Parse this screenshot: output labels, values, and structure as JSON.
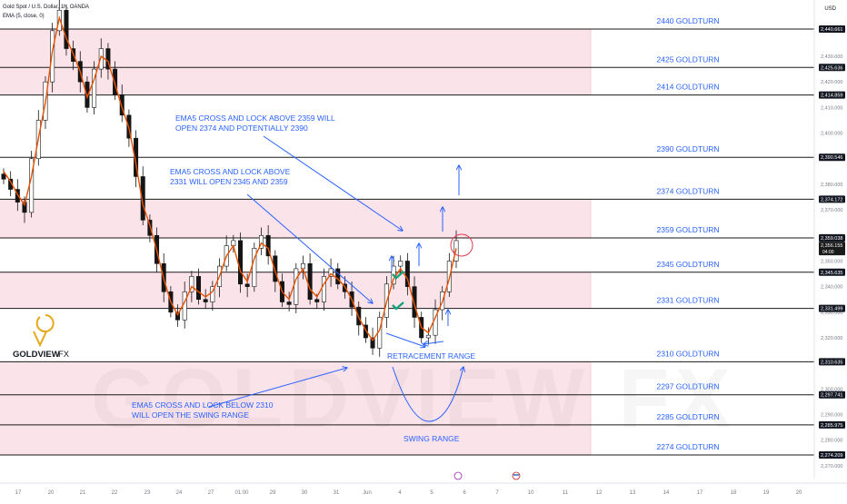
{
  "header": {
    "symbol": "Gold Spot / U.S. Dollar, 1h, OANDA",
    "indicator": "EMA (5, close, 0)",
    "currency": "USD"
  },
  "logo": {
    "brand": "GOLDVIEW",
    "suffix": "FX",
    "watermark": "GOLDVIEW FX"
  },
  "colors": {
    "zone_pink": "#fbe3ea",
    "level_line": "#1a1a1a",
    "level_label": "#2962ff",
    "annotation": "#2962ff",
    "ema": "#e65100",
    "candle": "#151515",
    "circle": "#e53950",
    "check": "#12a37a",
    "logo_gold": "#e6a817"
  },
  "chart_data": {
    "type": "candlestick",
    "title": "Gold Spot / U.S. Dollar, 1h, OANDA",
    "ylim": [
      2265,
      2452
    ],
    "y_ticks": [
      2270,
      2280,
      2290,
      2300,
      2310,
      2320,
      2330,
      2340,
      2350,
      2360,
      2370,
      2380,
      2390,
      2400,
      2410,
      2420,
      2430,
      2440
    ],
    "x_ticks": [
      "17",
      "20",
      "21",
      "22",
      "23",
      "24",
      "27",
      "01:00",
      "29",
      "30",
      "31",
      "Jun",
      "4",
      "5",
      "6",
      "7",
      "10",
      "11",
      "12",
      "13",
      "14",
      "17",
      "18",
      "19",
      "20"
    ],
    "price_labels": [
      {
        "value": 2440.661,
        "label": "2,440.661"
      },
      {
        "value": 2425.636,
        "label": "2,425.636"
      },
      {
        "value": 2414.859,
        "label": "2,414.859"
      },
      {
        "value": 2390.546,
        "label": "2,390.546"
      },
      {
        "value": 2374.172,
        "label": "2,374.172"
      },
      {
        "value": 2359.038,
        "label": "2,359.038"
      },
      {
        "value": 2356.155,
        "label": "2,356.155",
        "sub": "04:00"
      },
      {
        "value": 2345.635,
        "label": "2,345.635"
      },
      {
        "value": 2331.499,
        "label": "2,331.499"
      },
      {
        "value": 2310.635,
        "label": "2,310.635"
      },
      {
        "value": 2297.741,
        "label": "2,297.741"
      },
      {
        "value": 2285.975,
        "label": "2,285.975"
      },
      {
        "value": 2274.209,
        "label": "2,274.209"
      }
    ],
    "levels": [
      {
        "value": 2440.661,
        "label": "2440 GOLDTURN"
      },
      {
        "value": 2425.636,
        "label": "2425 GOLDTURN"
      },
      {
        "value": 2414.859,
        "label": "2414 GOLDTURN"
      },
      {
        "value": 2390.546,
        "label": "2390 GOLDTURN"
      },
      {
        "value": 2374.172,
        "label": "2374 GOLDTURN"
      },
      {
        "value": 2359.038,
        "label": "2359 GOLDTURN"
      },
      {
        "value": 2345.635,
        "label": "2345 GOLDTURN"
      },
      {
        "value": 2331.499,
        "label": "2331 GOLDTURN"
      },
      {
        "value": 2310.635,
        "label": "2310 GOLDTURN"
      },
      {
        "value": 2297.741,
        "label": "2297 GOLDTURN"
      },
      {
        "value": 2285.975,
        "label": "2285 GOLDTURN"
      },
      {
        "value": 2274.209,
        "label": "2274 GOLDTURN"
      }
    ],
    "zones": [
      {
        "from": 2414.859,
        "to": 2440.661
      },
      {
        "from": 2359.038,
        "to": 2374.172
      },
      {
        "from": 2331.499,
        "to": 2345.635
      },
      {
        "from": 2274.209,
        "to": 2310.635
      }
    ],
    "series": [
      {
        "name": "EMA (5, close, 0)",
        "values": [
          2385,
          2381,
          2376,
          2372,
          2383,
          2398,
          2412,
          2432,
          2445,
          2437,
          2431,
          2424,
          2414,
          2421,
          2430,
          2428,
          2419,
          2410,
          2402,
          2388,
          2372,
          2364,
          2354,
          2343,
          2334,
          2329,
          2334,
          2340,
          2338,
          2336,
          2338,
          2344,
          2352,
          2356,
          2346,
          2342,
          2351,
          2357,
          2355,
          2346,
          2338,
          2335,
          2343,
          2347,
          2339,
          2336,
          2341,
          2345,
          2343,
          2340,
          2335,
          2328,
          2323,
          2319,
          2323,
          2334,
          2343,
          2347,
          2343,
          2333,
          2324,
          2322,
          2328,
          2334,
          2343,
          2355
        ]
      }
    ],
    "close": [
      2382,
      2378,
      2373,
      2369,
      2390,
      2405,
      2420,
      2440,
      2448,
      2433,
      2428,
      2420,
      2410,
      2425,
      2433,
      2425,
      2415,
      2407,
      2398,
      2383,
      2366,
      2360,
      2349,
      2338,
      2330,
      2327,
      2338,
      2344,
      2335,
      2334,
      2340,
      2348,
      2356,
      2358,
      2341,
      2340,
      2355,
      2360,
      2352,
      2342,
      2334,
      2333,
      2347,
      2349,
      2335,
      2334,
      2344,
      2347,
      2341,
      2338,
      2332,
      2325,
      2320,
      2316,
      2328,
      2341,
      2348,
      2350,
      2340,
      2328,
      2320,
      2321,
      2331,
      2338,
      2350,
      2358
    ],
    "annotations": [
      "EMA5 CROSS AND LOCK ABOVE 2359 WILL",
      "OPEN 2374 AND POTENTIALLY 2390",
      "EMA5 CROSS AND LOCK ABOVE",
      "2331 WILL OPEN 2345 AND 2359",
      "EMA5 CROSS AND LOCK BELOW 2310",
      "WILL OPEN THE SWING RANGE",
      "RETRACEMENT RANGE",
      "SWING RANGE"
    ]
  }
}
